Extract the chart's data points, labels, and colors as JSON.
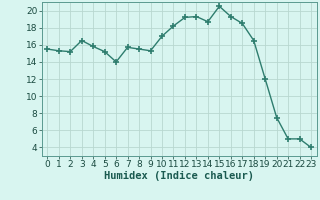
{
  "x": [
    0,
    1,
    2,
    3,
    4,
    5,
    6,
    7,
    8,
    9,
    10,
    11,
    12,
    13,
    14,
    15,
    16,
    17,
    18,
    19,
    20,
    21,
    22,
    23
  ],
  "y": [
    15.5,
    15.3,
    15.2,
    16.5,
    15.8,
    15.2,
    14.0,
    15.7,
    15.5,
    15.3,
    17.0,
    18.2,
    19.2,
    19.3,
    18.7,
    20.5,
    19.3,
    18.5,
    16.5,
    12.0,
    7.5,
    5.0,
    5.0,
    4.0
  ],
  "line_color": "#2e7d6e",
  "marker": "+",
  "bg_color": "#d8f5f0",
  "grid_color": "#b8d8d0",
  "xlabel": "Humidex (Indice chaleur)",
  "xlim": [
    -0.5,
    23.5
  ],
  "ylim": [
    3,
    21
  ],
  "yticks": [
    4,
    6,
    8,
    10,
    12,
    14,
    16,
    18,
    20
  ],
  "xticks": [
    0,
    1,
    2,
    3,
    4,
    5,
    6,
    7,
    8,
    9,
    10,
    11,
    12,
    13,
    14,
    15,
    16,
    17,
    18,
    19,
    20,
    21,
    22,
    23
  ],
  "tick_fontsize": 6.5,
  "label_fontsize": 7.5
}
